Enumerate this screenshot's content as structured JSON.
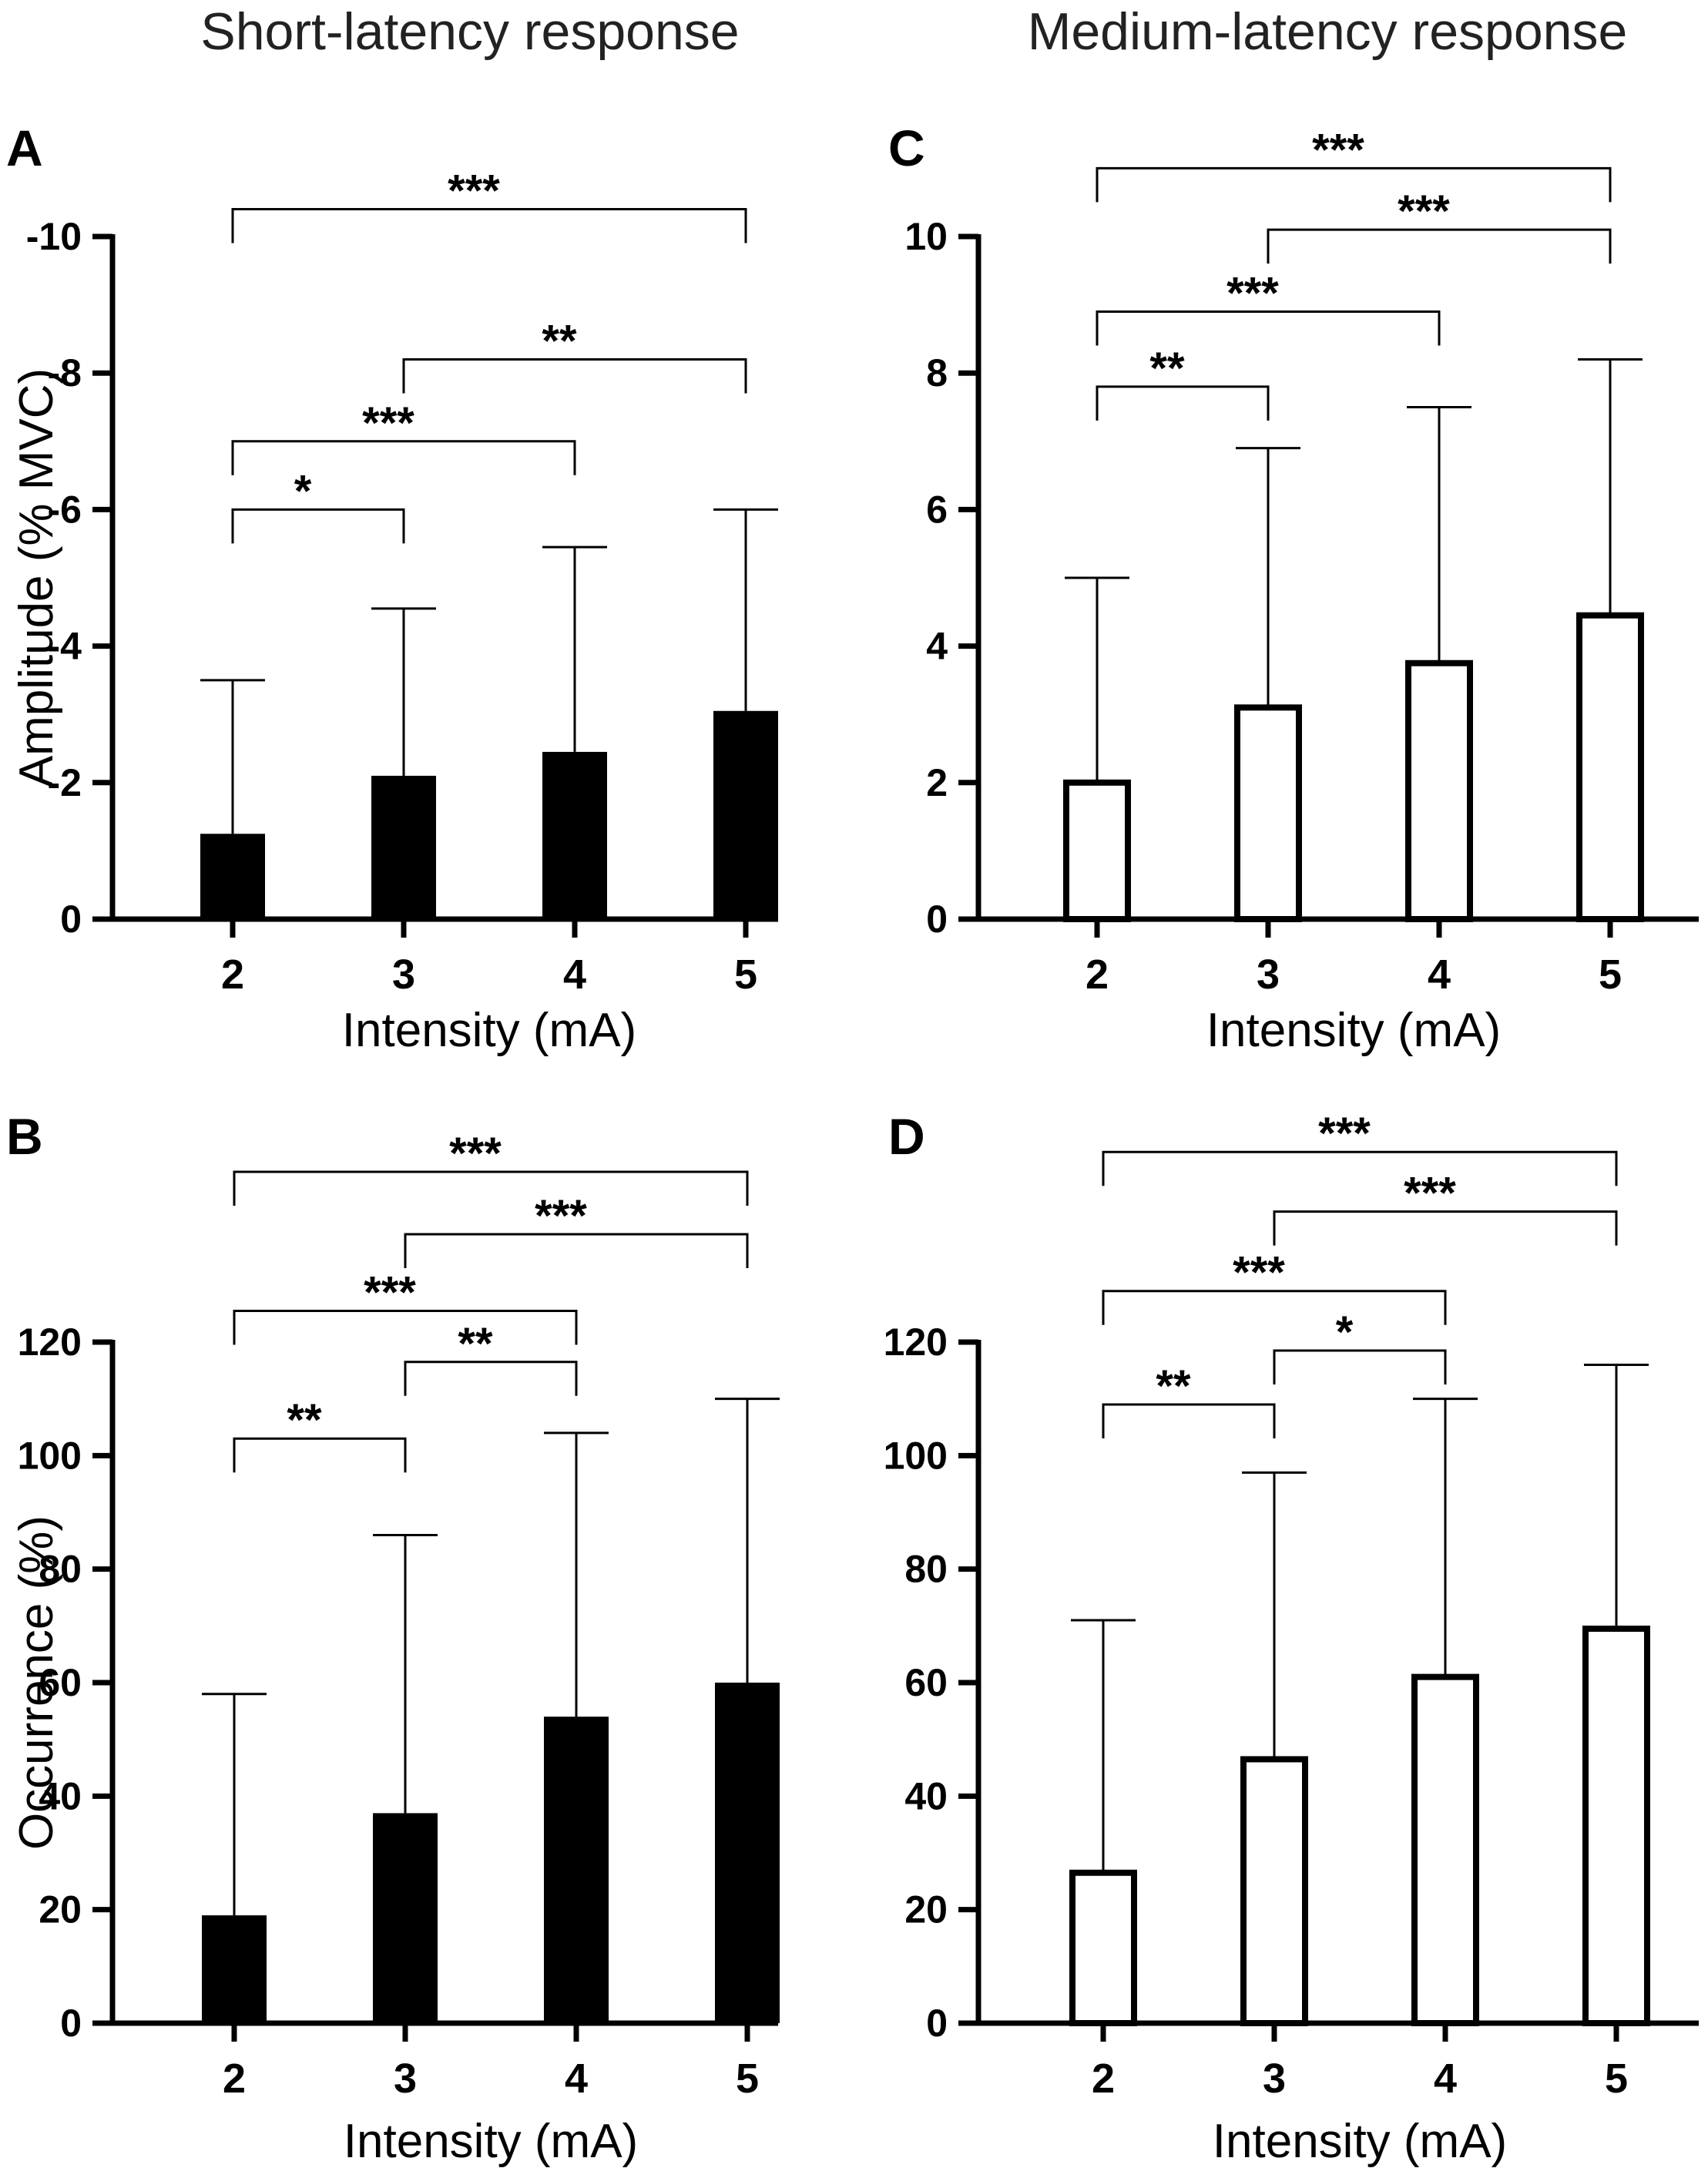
{
  "column_titles": [
    "Short-latency response",
    "Medium-latency response"
  ],
  "chart_data": [
    {
      "id": "A",
      "panel_label": "A",
      "type": "bar",
      "fill": "#000000",
      "categories": [
        "2",
        "3",
        "4",
        "5"
      ],
      "values": [
        -1.25,
        -2.1,
        -2.45,
        -3.05
      ],
      "error_upper": [
        -3.5,
        -4.55,
        -5.45,
        -6.0
      ],
      "ylim": [
        0,
        -10
      ],
      "yticks": [
        0,
        -2,
        -4,
        -6,
        -8,
        -10
      ],
      "ytick_labels": [
        "0",
        "-2",
        "-4",
        "-6",
        "-8",
        "-10"
      ],
      "xlabel": "Intensity (mA)",
      "ylabel": "Amplitude (% MVC)",
      "significance": [
        {
          "from": 0,
          "to": 3,
          "label": "***",
          "level": -10.4
        },
        {
          "from": 1,
          "to": 3,
          "label": "**",
          "level": -8.2
        },
        {
          "from": 0,
          "to": 2,
          "label": "***",
          "level": -7.0
        },
        {
          "from": 0,
          "to": 1,
          "label": "*",
          "level": -6.0
        }
      ]
    },
    {
      "id": "B",
      "panel_label": "B",
      "type": "bar",
      "fill": "#000000",
      "categories": [
        "2",
        "3",
        "4",
        "5"
      ],
      "values": [
        19,
        37,
        54,
        60
      ],
      "error_upper": [
        58,
        86,
        104,
        110
      ],
      "ylim": [
        0,
        120
      ],
      "yticks": [
        0,
        20,
        40,
        60,
        80,
        100,
        120
      ],
      "ytick_labels": [
        "0",
        "20",
        "40",
        "60",
        "80",
        "100",
        "120"
      ],
      "xlabel": "Intensity (mA)",
      "ylabel": "Occurrence (%)",
      "significance": [
        {
          "from": 0,
          "to": 3,
          "label": "***",
          "level": 150
        },
        {
          "from": 1,
          "to": 3,
          "label": "***",
          "level": 139
        },
        {
          "from": 0,
          "to": 2,
          "label": "***",
          "level": 125.5
        },
        {
          "from": 1,
          "to": 2,
          "label": "**",
          "level": 116.5
        },
        {
          "from": 0,
          "to": 1,
          "label": "**",
          "level": 103
        }
      ]
    },
    {
      "id": "C",
      "panel_label": "C",
      "type": "bar",
      "fill": "#ffffff",
      "categories": [
        "2",
        "3",
        "4",
        "5"
      ],
      "values": [
        2.0,
        3.1,
        3.75,
        4.45
      ],
      "error_upper": [
        5.0,
        6.9,
        7.5,
        8.2
      ],
      "ylim": [
        0,
        10
      ],
      "yticks": [
        0,
        2,
        4,
        6,
        8,
        10
      ],
      "ytick_labels": [
        "0",
        "2",
        "4",
        "6",
        "8",
        "10"
      ],
      "xlabel": "Intensity (mA)",
      "ylabel": "",
      "significance": [
        {
          "from": 0,
          "to": 3,
          "label": "***",
          "level": 11.0
        },
        {
          "from": 1,
          "to": 3,
          "label": "***",
          "level": 10.1
        },
        {
          "from": 0,
          "to": 2,
          "label": "***",
          "level": 8.9
        },
        {
          "from": 0,
          "to": 1,
          "label": "**",
          "level": 7.8
        }
      ]
    },
    {
      "id": "D",
      "panel_label": "D",
      "type": "bar",
      "fill": "#ffffff",
      "categories": [
        "2",
        "3",
        "4",
        "5"
      ],
      "values": [
        26.5,
        46.5,
        61,
        69.5
      ],
      "error_upper": [
        71,
        97,
        110,
        116
      ],
      "ylim": [
        0,
        120
      ],
      "yticks": [
        0,
        20,
        40,
        60,
        80,
        100,
        120
      ],
      "ytick_labels": [
        "0",
        "20",
        "40",
        "60",
        "80",
        "100",
        "120"
      ],
      "xlabel": "Intensity (mA)",
      "ylabel": "",
      "significance": [
        {
          "from": 0,
          "to": 3,
          "label": "***",
          "level": 153.5
        },
        {
          "from": 1,
          "to": 3,
          "label": "***",
          "level": 143
        },
        {
          "from": 0,
          "to": 2,
          "label": "***",
          "level": 129
        },
        {
          "from": 1,
          "to": 2,
          "label": "*",
          "level": 118.5
        },
        {
          "from": 0,
          "to": 1,
          "label": "**",
          "level": 109
        }
      ]
    }
  ]
}
